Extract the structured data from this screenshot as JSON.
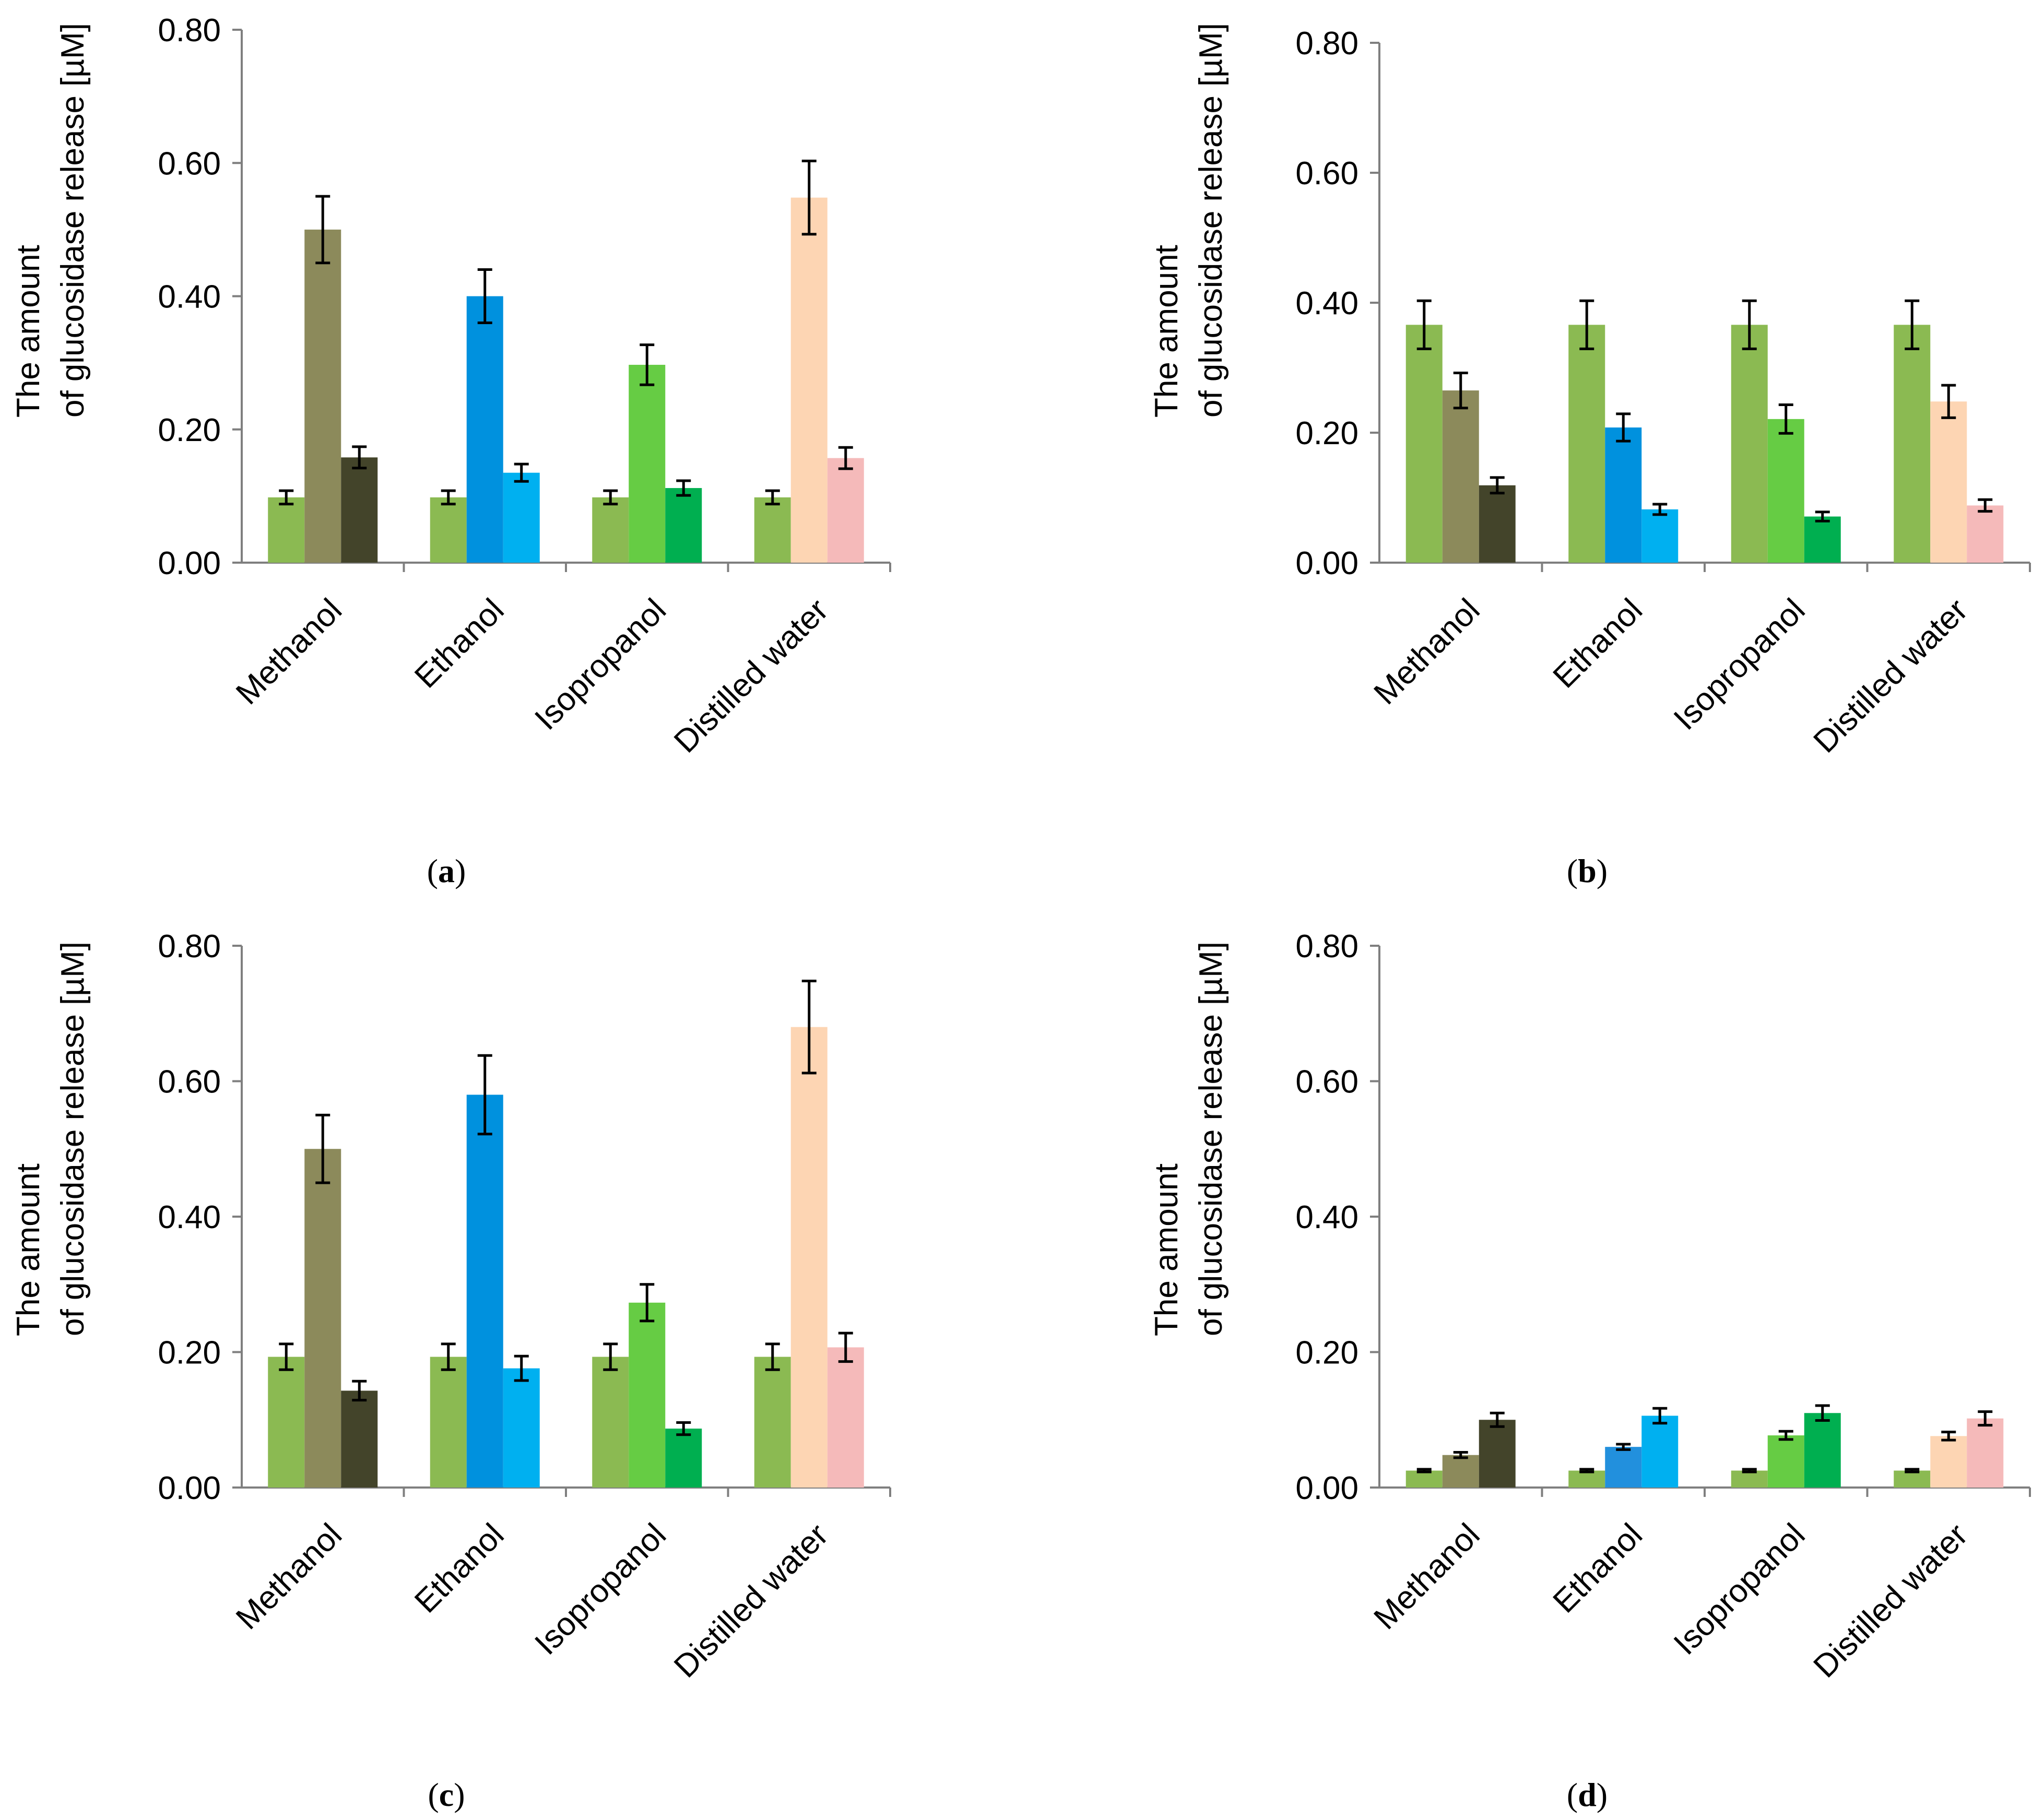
{
  "chart_data": [
    {
      "panel": "a",
      "type": "bar",
      "ylabel": [
        "The amount",
        "of glucosidase release [µM]"
      ],
      "ylim": [
        0,
        0.8
      ],
      "yticks": [
        "0.00",
        "0.20",
        "0.40",
        "0.60",
        "0.80"
      ],
      "categories": [
        "Methanol",
        "Ethanol",
        "Isopropanol",
        "Distilled water"
      ],
      "bars": [
        [
          {
            "value": 0.098,
            "error": 0.01,
            "color": "#8bba52"
          },
          {
            "value": 0.5,
            "error": 0.05,
            "color": "#8c8a5b"
          },
          {
            "value": 0.158,
            "error": 0.016,
            "color": "#43442a"
          }
        ],
        [
          {
            "value": 0.098,
            "error": 0.01,
            "color": "#8bba52"
          },
          {
            "value": 0.4,
            "error": 0.04,
            "color": "#0091de"
          },
          {
            "value": 0.135,
            "error": 0.013,
            "color": "#00b0f0"
          }
        ],
        [
          {
            "value": 0.098,
            "error": 0.01,
            "color": "#8bba52"
          },
          {
            "value": 0.297,
            "error": 0.03,
            "color": "#66cc44"
          },
          {
            "value": 0.112,
            "error": 0.011,
            "color": "#00af50"
          }
        ],
        [
          {
            "value": 0.098,
            "error": 0.01,
            "color": "#8bba52"
          },
          {
            "value": 0.548,
            "error": 0.055,
            "color": "#fdd5b3"
          },
          {
            "value": 0.157,
            "error": 0.016,
            "color": "#f5baba"
          }
        ]
      ],
      "panel_label": "a"
    },
    {
      "panel": "b",
      "type": "bar",
      "ylabel": [
        "The amount",
        "of glucosidase release [µM]"
      ],
      "ylim": [
        0,
        0.8
      ],
      "yticks": [
        "0.00",
        "0.20",
        "0.40",
        "0.60",
        "0.80"
      ],
      "categories": [
        "Methanol",
        "Ethanol",
        "Isopropanol",
        "Distilled water"
      ],
      "bars": [
        [
          {
            "value": 0.366,
            "error": 0.037,
            "color": "#8bba52"
          },
          {
            "value": 0.265,
            "error": 0.027,
            "color": "#8c8a5b"
          },
          {
            "value": 0.119,
            "error": 0.012,
            "color": "#43442a"
          }
        ],
        [
          {
            "value": 0.366,
            "error": 0.037,
            "color": "#8bba52"
          },
          {
            "value": 0.208,
            "error": 0.021,
            "color": "#0091de"
          },
          {
            "value": 0.082,
            "error": 0.008,
            "color": "#00b0f0"
          }
        ],
        [
          {
            "value": 0.366,
            "error": 0.037,
            "color": "#8bba52"
          },
          {
            "value": 0.221,
            "error": 0.022,
            "color": "#66cc44"
          },
          {
            "value": 0.071,
            "error": 0.007,
            "color": "#00af50"
          }
        ],
        [
          {
            "value": 0.366,
            "error": 0.037,
            "color": "#8bba52"
          },
          {
            "value": 0.248,
            "error": 0.025,
            "color": "#fdd5b3"
          },
          {
            "value": 0.088,
            "error": 0.009,
            "color": "#f5baba"
          }
        ]
      ],
      "panel_label": "b"
    },
    {
      "panel": "c",
      "type": "bar",
      "ylabel": [
        "The amount",
        "of glucosidase release [µM]"
      ],
      "ylim": [
        0,
        0.8
      ],
      "yticks": [
        "0.00",
        "0.20",
        "0.40",
        "0.60",
        "0.80"
      ],
      "categories": [
        "Methanol",
        "Ethanol",
        "Isopropanol",
        "Distilled water"
      ],
      "bars": [
        [
          {
            "value": 0.193,
            "error": 0.019,
            "color": "#8bba52"
          },
          {
            "value": 0.5,
            "error": 0.05,
            "color": "#8c8a5b"
          },
          {
            "value": 0.143,
            "error": 0.014,
            "color": "#43442a"
          }
        ],
        [
          {
            "value": 0.193,
            "error": 0.019,
            "color": "#8bba52"
          },
          {
            "value": 0.58,
            "error": 0.058,
            "color": "#0091de"
          },
          {
            "value": 0.176,
            "error": 0.018,
            "color": "#00b0f0"
          }
        ],
        [
          {
            "value": 0.193,
            "error": 0.019,
            "color": "#8bba52"
          },
          {
            "value": 0.273,
            "error": 0.027,
            "color": "#66cc44"
          },
          {
            "value": 0.087,
            "error": 0.009,
            "color": "#00af50"
          }
        ],
        [
          {
            "value": 0.193,
            "error": 0.019,
            "color": "#8bba52"
          },
          {
            "value": 0.68,
            "error": 0.068,
            "color": "#fdd5b3"
          },
          {
            "value": 0.207,
            "error": 0.021,
            "color": "#f5baba"
          }
        ]
      ],
      "panel_label": "c"
    },
    {
      "panel": "d",
      "type": "bar",
      "ylabel": [
        "The amount",
        "of glucosidase release [µM]"
      ],
      "ylim": [
        0,
        0.8
      ],
      "yticks": [
        "0.00",
        "0.20",
        "0.40",
        "0.60",
        "0.80"
      ],
      "categories": [
        "Methanol",
        "Ethanol",
        "Isopropanol",
        "Distilled water"
      ],
      "bars": [
        [
          {
            "value": 0.025,
            "error": 0.002,
            "color": "#8bba52"
          },
          {
            "value": 0.048,
            "error": 0.004,
            "color": "#8c8a5b"
          },
          {
            "value": 0.1,
            "error": 0.01,
            "color": "#43442a"
          }
        ],
        [
          {
            "value": 0.025,
            "error": 0.002,
            "color": "#8bba52"
          },
          {
            "value": 0.06,
            "error": 0.004,
            "color": "#2290dd"
          },
          {
            "value": 0.106,
            "error": 0.011,
            "color": "#00b0f0"
          }
        ],
        [
          {
            "value": 0.025,
            "error": 0.002,
            "color": "#8bba52"
          },
          {
            "value": 0.077,
            "error": 0.006,
            "color": "#66cc44"
          },
          {
            "value": 0.11,
            "error": 0.011,
            "color": "#00af50"
          }
        ],
        [
          {
            "value": 0.025,
            "error": 0.002,
            "color": "#8bba52"
          },
          {
            "value": 0.076,
            "error": 0.006,
            "color": "#fdd5b3"
          },
          {
            "value": 0.102,
            "error": 0.01,
            "color": "#f5baba"
          }
        ]
      ],
      "panel_label": "d"
    }
  ]
}
